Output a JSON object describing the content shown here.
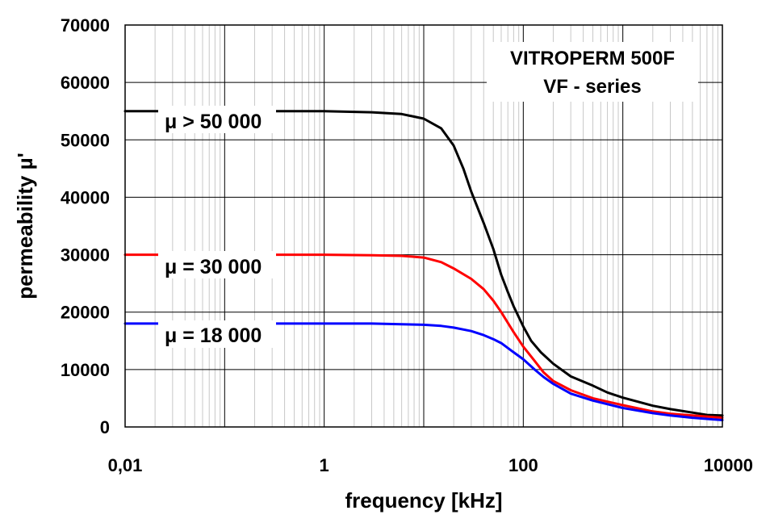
{
  "chart_data": {
    "type": "line",
    "title_box": [
      "VITROPERM 500F",
      "VF - series"
    ],
    "xlabel": "frequency [kHz]",
    "ylabel": "permeability µ'",
    "x_scale": "log",
    "xlim": [
      0.01,
      10000
    ],
    "ylim": [
      0,
      70000
    ],
    "x_ticks": [
      {
        "value": 0.01,
        "label": "0,01"
      },
      {
        "value": 1,
        "label": "1"
      },
      {
        "value": 100,
        "label": "100"
      },
      {
        "value": 10000,
        "label": "10000"
      }
    ],
    "y_ticks": [
      {
        "value": 0,
        "label": "0"
      },
      {
        "value": 10000,
        "label": "10000"
      },
      {
        "value": 20000,
        "label": "20000"
      },
      {
        "value": 30000,
        "label": "30000"
      },
      {
        "value": 40000,
        "label": "40000"
      },
      {
        "value": 50000,
        "label": "50000"
      },
      {
        "value": 60000,
        "label": "60000"
      },
      {
        "value": 70000,
        "label": "70000"
      }
    ],
    "grid": {
      "major": true,
      "minor_x": true
    },
    "series": [
      {
        "name": "μ > 50 000",
        "color": "#000000",
        "x": [
          0.01,
          0.1,
          1,
          3,
          6,
          10,
          15,
          20,
          25,
          30,
          40,
          50,
          60,
          70,
          80,
          100,
          120,
          150,
          200,
          300,
          500,
          700,
          1000,
          2000,
          3000,
          5000,
          7000,
          10000
        ],
        "y": [
          55000,
          55000,
          55000,
          54800,
          54500,
          53700,
          52000,
          49000,
          45000,
          41000,
          35500,
          31000,
          26500,
          23500,
          21000,
          17500,
          15000,
          13000,
          11000,
          8800,
          7200,
          6000,
          5100,
          3700,
          3100,
          2500,
          2100,
          2000
        ]
      },
      {
        "name": "μ = 30 000",
        "color": "#ff0000",
        "x": [
          0.01,
          0.1,
          1,
          3,
          6,
          10,
          15,
          20,
          30,
          40,
          50,
          60,
          80,
          100,
          130,
          160,
          200,
          300,
          500,
          1000,
          2000,
          3000,
          5000,
          10000
        ],
        "y": [
          30000,
          30000,
          30000,
          29900,
          29800,
          29500,
          28700,
          27600,
          25800,
          24000,
          22000,
          20000,
          16500,
          14000,
          11500,
          9500,
          8000,
          6400,
          5000,
          3800,
          2700,
          2300,
          2000,
          1600
        ]
      },
      {
        "name": "μ = 18 000",
        "color": "#0000ff",
        "x": [
          0.01,
          0.1,
          1,
          3,
          6,
          10,
          15,
          20,
          30,
          40,
          50,
          60,
          80,
          100,
          130,
          160,
          200,
          300,
          500,
          1000,
          2000,
          3000,
          5000,
          10000
        ],
        "y": [
          18000,
          18000,
          18000,
          18000,
          17900,
          17800,
          17600,
          17300,
          16700,
          16000,
          15300,
          14600,
          13000,
          11800,
          10000,
          8700,
          7500,
          5800,
          4600,
          3300,
          2400,
          2000,
          1600,
          1200
        ]
      }
    ]
  }
}
